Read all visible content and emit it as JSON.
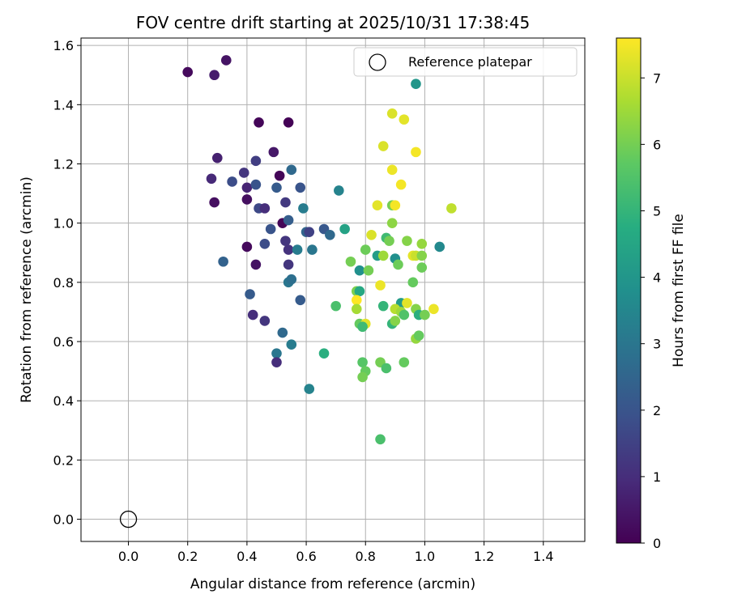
{
  "chart_data": {
    "type": "scatter",
    "title": "FOV centre drift starting at 2025/10/31 17:38:45",
    "xlabel": "Angular distance from reference (arcmin)",
    "ylabel": "Rotation from reference (arcmin)",
    "xlim": [
      -0.16,
      1.54
    ],
    "ylim": [
      -0.075,
      1.625
    ],
    "xticks": [
      0.0,
      0.2,
      0.4,
      0.6,
      0.8,
      1.0,
      1.2,
      1.4
    ],
    "xtick_labels": [
      "0.0",
      "0.2",
      "0.4",
      "0.6",
      "0.8",
      "1.0",
      "1.2",
      "1.4"
    ],
    "yticks": [
      0.0,
      0.2,
      0.4,
      0.6,
      0.8,
      1.0,
      1.2,
      1.4,
      1.6
    ],
    "ytick_labels": [
      "0.0",
      "0.2",
      "0.4",
      "0.6",
      "0.8",
      "1.0",
      "1.2",
      "1.4",
      "1.6"
    ],
    "grid": true,
    "legend": {
      "position": "top-right",
      "entries": [
        {
          "label": "Reference platepar",
          "marker": "open-circle"
        }
      ]
    },
    "reference_point": {
      "x": 0.0,
      "y": 0.0
    },
    "colorbar": {
      "label": "Hours from first FF file",
      "colormap": "viridis",
      "range": [
        0,
        7.6
      ],
      "ticks": [
        0,
        1,
        2,
        3,
        4,
        5,
        6,
        7
      ],
      "tick_labels": [
        "0",
        "1",
        "2",
        "3",
        "4",
        "5",
        "6",
        "7"
      ]
    },
    "points": [
      {
        "x": 0.2,
        "y": 1.51,
        "c": 0.2
      },
      {
        "x": 0.29,
        "y": 1.5,
        "c": 0.6
      },
      {
        "x": 0.33,
        "y": 1.55,
        "c": 0.4
      },
      {
        "x": 0.44,
        "y": 1.34,
        "c": 0.1
      },
      {
        "x": 0.54,
        "y": 1.34,
        "c": 0.05
      },
      {
        "x": 0.3,
        "y": 1.22,
        "c": 0.7
      },
      {
        "x": 0.28,
        "y": 1.15,
        "c": 0.9
      },
      {
        "x": 0.35,
        "y": 1.14,
        "c": 1.8
      },
      {
        "x": 0.39,
        "y": 1.17,
        "c": 1.2
      },
      {
        "x": 0.43,
        "y": 1.21,
        "c": 1.4
      },
      {
        "x": 0.4,
        "y": 1.12,
        "c": 0.8
      },
      {
        "x": 0.43,
        "y": 1.13,
        "c": 2.0
      },
      {
        "x": 0.49,
        "y": 1.24,
        "c": 0.5
      },
      {
        "x": 0.51,
        "y": 1.16,
        "c": 0.1
      },
      {
        "x": 0.5,
        "y": 1.12,
        "c": 2.2
      },
      {
        "x": 0.55,
        "y": 1.18,
        "c": 2.6
      },
      {
        "x": 0.58,
        "y": 1.12,
        "c": 2.0
      },
      {
        "x": 0.29,
        "y": 1.07,
        "c": 0.3
      },
      {
        "x": 0.4,
        "y": 1.08,
        "c": 0.3
      },
      {
        "x": 0.44,
        "y": 1.05,
        "c": 1.7
      },
      {
        "x": 0.46,
        "y": 1.05,
        "c": 1.0
      },
      {
        "x": 0.53,
        "y": 1.07,
        "c": 1.3
      },
      {
        "x": 0.59,
        "y": 1.05,
        "c": 3.2
      },
      {
        "x": 0.71,
        "y": 1.11,
        "c": 3.4
      },
      {
        "x": 0.48,
        "y": 0.98,
        "c": 2.0
      },
      {
        "x": 0.52,
        "y": 1.0,
        "c": 0.1
      },
      {
        "x": 0.54,
        "y": 1.01,
        "c": 2.3
      },
      {
        "x": 0.4,
        "y": 0.92,
        "c": 0.2
      },
      {
        "x": 0.46,
        "y": 0.93,
        "c": 1.8
      },
      {
        "x": 0.53,
        "y": 0.94,
        "c": 1.2
      },
      {
        "x": 0.54,
        "y": 0.91,
        "c": 1.1
      },
      {
        "x": 0.57,
        "y": 0.91,
        "c": 3.2
      },
      {
        "x": 0.6,
        "y": 0.97,
        "c": 2.5
      },
      {
        "x": 0.61,
        "y": 0.97,
        "c": 1.5
      },
      {
        "x": 0.62,
        "y": 0.91,
        "c": 3.0
      },
      {
        "x": 0.66,
        "y": 0.98,
        "c": 2.1
      },
      {
        "x": 0.68,
        "y": 0.96,
        "c": 2.6
      },
      {
        "x": 0.73,
        "y": 0.98,
        "c": 4.4
      },
      {
        "x": 0.32,
        "y": 0.87,
        "c": 2.4
      },
      {
        "x": 0.43,
        "y": 0.86,
        "c": 0.4
      },
      {
        "x": 0.54,
        "y": 0.86,
        "c": 1.2
      },
      {
        "x": 0.54,
        "y": 0.8,
        "c": 3.0
      },
      {
        "x": 0.55,
        "y": 0.81,
        "c": 2.8
      },
      {
        "x": 0.41,
        "y": 0.76,
        "c": 2.2
      },
      {
        "x": 0.58,
        "y": 0.74,
        "c": 2.2
      },
      {
        "x": 0.42,
        "y": 0.69,
        "c": 1.0
      },
      {
        "x": 0.46,
        "y": 0.67,
        "c": 1.2
      },
      {
        "x": 0.52,
        "y": 0.63,
        "c": 2.6
      },
      {
        "x": 0.55,
        "y": 0.59,
        "c": 3.2
      },
      {
        "x": 0.5,
        "y": 0.56,
        "c": 3.0
      },
      {
        "x": 0.5,
        "y": 0.53,
        "c": 1.0
      },
      {
        "x": 0.61,
        "y": 0.44,
        "c": 3.4
      },
      {
        "x": 0.66,
        "y": 0.56,
        "c": 4.8
      },
      {
        "x": 0.97,
        "y": 1.47,
        "c": 4.0
      },
      {
        "x": 0.89,
        "y": 1.37,
        "c": 7.2
      },
      {
        "x": 0.93,
        "y": 1.35,
        "c": 7.3
      },
      {
        "x": 0.86,
        "y": 1.26,
        "c": 7.2
      },
      {
        "x": 0.97,
        "y": 1.24,
        "c": 7.5
      },
      {
        "x": 0.89,
        "y": 1.18,
        "c": 7.4
      },
      {
        "x": 0.92,
        "y": 1.13,
        "c": 7.5
      },
      {
        "x": 0.84,
        "y": 1.06,
        "c": 7.3
      },
      {
        "x": 0.89,
        "y": 1.06,
        "c": 6.0
      },
      {
        "x": 0.9,
        "y": 1.06,
        "c": 7.5
      },
      {
        "x": 1.09,
        "y": 1.05,
        "c": 6.9
      },
      {
        "x": 0.89,
        "y": 1.0,
        "c": 6.3
      },
      {
        "x": 0.82,
        "y": 0.96,
        "c": 7.2
      },
      {
        "x": 0.87,
        "y": 0.95,
        "c": 5.2
      },
      {
        "x": 0.88,
        "y": 0.94,
        "c": 6.0
      },
      {
        "x": 0.94,
        "y": 0.94,
        "c": 6.2
      },
      {
        "x": 0.99,
        "y": 0.93,
        "c": 6.4
      },
      {
        "x": 0.8,
        "y": 0.91,
        "c": 5.9
      },
      {
        "x": 0.84,
        "y": 0.89,
        "c": 4.2
      },
      {
        "x": 0.86,
        "y": 0.89,
        "c": 6.5
      },
      {
        "x": 0.9,
        "y": 0.88,
        "c": 3.8
      },
      {
        "x": 0.96,
        "y": 0.89,
        "c": 7.3
      },
      {
        "x": 0.97,
        "y": 0.89,
        "c": 7.0
      },
      {
        "x": 0.99,
        "y": 0.89,
        "c": 6.2
      },
      {
        "x": 1.05,
        "y": 0.92,
        "c": 3.6
      },
      {
        "x": 0.75,
        "y": 0.87,
        "c": 6.0
      },
      {
        "x": 0.91,
        "y": 0.86,
        "c": 5.9
      },
      {
        "x": 0.99,
        "y": 0.85,
        "c": 5.9
      },
      {
        "x": 0.78,
        "y": 0.84,
        "c": 3.8
      },
      {
        "x": 0.81,
        "y": 0.84,
        "c": 6.0
      },
      {
        "x": 0.85,
        "y": 0.79,
        "c": 7.4
      },
      {
        "x": 0.96,
        "y": 0.8,
        "c": 5.8
      },
      {
        "x": 0.77,
        "y": 0.77,
        "c": 6.1
      },
      {
        "x": 0.78,
        "y": 0.77,
        "c": 4.6
      },
      {
        "x": 0.77,
        "y": 0.74,
        "c": 7.6
      },
      {
        "x": 0.7,
        "y": 0.72,
        "c": 5.4
      },
      {
        "x": 0.77,
        "y": 0.71,
        "c": 6.6
      },
      {
        "x": 0.86,
        "y": 0.72,
        "c": 5.0
      },
      {
        "x": 0.92,
        "y": 0.73,
        "c": 4.2
      },
      {
        "x": 0.94,
        "y": 0.73,
        "c": 7.3
      },
      {
        "x": 0.9,
        "y": 0.71,
        "c": 6.8
      },
      {
        "x": 0.92,
        "y": 0.7,
        "c": 6.5
      },
      {
        "x": 0.97,
        "y": 0.71,
        "c": 6.2
      },
      {
        "x": 0.93,
        "y": 0.69,
        "c": 5.5
      },
      {
        "x": 0.98,
        "y": 0.69,
        "c": 4.8
      },
      {
        "x": 1.0,
        "y": 0.69,
        "c": 6.0
      },
      {
        "x": 1.03,
        "y": 0.71,
        "c": 7.4
      },
      {
        "x": 0.78,
        "y": 0.66,
        "c": 5.8
      },
      {
        "x": 0.8,
        "y": 0.66,
        "c": 7.3
      },
      {
        "x": 0.89,
        "y": 0.66,
        "c": 5.0
      },
      {
        "x": 0.9,
        "y": 0.67,
        "c": 6.2
      },
      {
        "x": 0.79,
        "y": 0.65,
        "c": 5.2
      },
      {
        "x": 0.97,
        "y": 0.61,
        "c": 6.4
      },
      {
        "x": 0.98,
        "y": 0.62,
        "c": 5.8
      },
      {
        "x": 0.79,
        "y": 0.53,
        "c": 5.6
      },
      {
        "x": 0.85,
        "y": 0.53,
        "c": 6.0
      },
      {
        "x": 0.93,
        "y": 0.53,
        "c": 5.8
      },
      {
        "x": 0.87,
        "y": 0.51,
        "c": 5.4
      },
      {
        "x": 0.8,
        "y": 0.5,
        "c": 5.8
      },
      {
        "x": 0.79,
        "y": 0.48,
        "c": 6.0
      },
      {
        "x": 0.85,
        "y": 0.27,
        "c": 5.4
      }
    ]
  }
}
